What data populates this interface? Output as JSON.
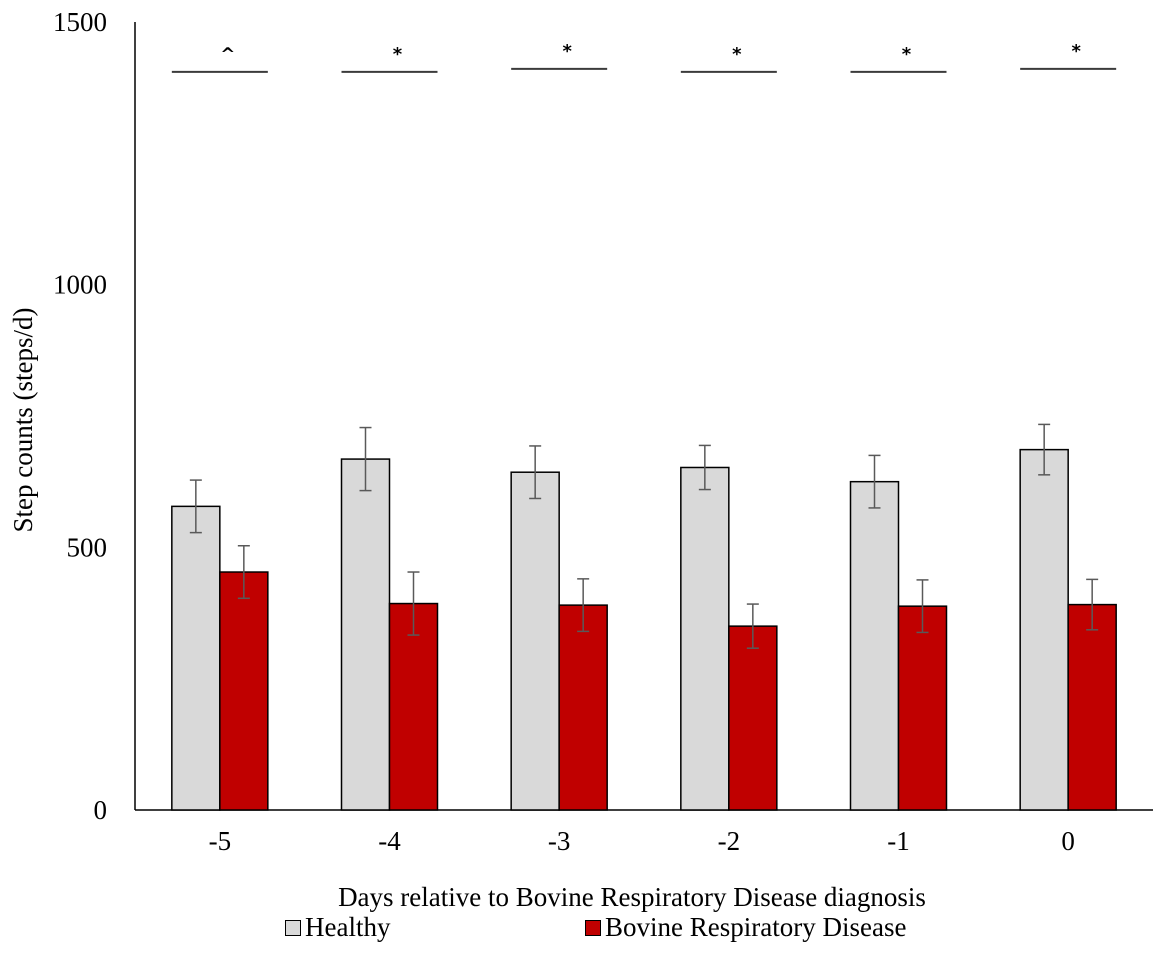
{
  "chart_data": {
    "type": "bar",
    "title": "",
    "xlabel": "Days relative to Bovine Respiratory Disease diagnosis",
    "ylabel": "Step counts (steps/d)",
    "ylim": [
      0,
      1500
    ],
    "yticks": [
      "0",
      "500",
      "1000",
      "1500"
    ],
    "categories": [
      "-5",
      "-4",
      "-3",
      "-2",
      "-1",
      "0"
    ],
    "series": [
      {
        "name": "Healthy",
        "color": "#d9d9d9",
        "values": [
          578,
          668,
          643,
          652,
          625,
          686
        ],
        "errors": [
          50,
          60,
          50,
          42,
          50,
          48
        ]
      },
      {
        "name": "Bovine Respiratory Disease",
        "color": "#c00000",
        "values": [
          453,
          393,
          390,
          350,
          388,
          391
        ],
        "errors": [
          50,
          60,
          50,
          42,
          50,
          48
        ]
      }
    ],
    "annotations": [
      "^",
      "*",
      "*",
      "*",
      "*",
      "*"
    ],
    "annotation_level": 1405,
    "grid": false,
    "legend_position": "bottom"
  }
}
